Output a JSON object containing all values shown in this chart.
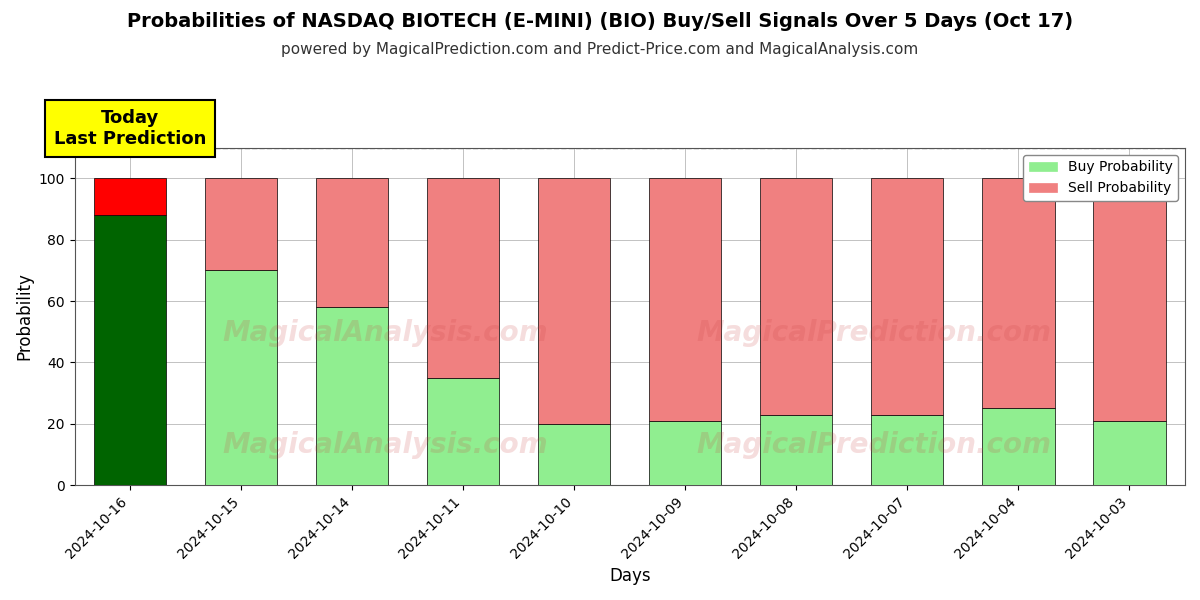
{
  "title": "Probabilities of NASDAQ BIOTECH (E-MINI) (BIO) Buy/Sell Signals Over 5 Days (Oct 17)",
  "subtitle": "powered by MagicalPrediction.com and Predict-Price.com and MagicalAnalysis.com",
  "xlabel": "Days",
  "ylabel": "Probability",
  "categories": [
    "2024-10-16",
    "2024-10-15",
    "2024-10-14",
    "2024-10-11",
    "2024-10-10",
    "2024-10-09",
    "2024-10-08",
    "2024-10-07",
    "2024-10-04",
    "2024-10-03"
  ],
  "buy_values": [
    88,
    70,
    58,
    35,
    20,
    21,
    23,
    23,
    25,
    21
  ],
  "sell_values": [
    12,
    30,
    42,
    65,
    80,
    79,
    77,
    77,
    75,
    79
  ],
  "buy_colors": [
    "#006400",
    "#90EE90",
    "#90EE90",
    "#90EE90",
    "#90EE90",
    "#90EE90",
    "#90EE90",
    "#90EE90",
    "#90EE90",
    "#90EE90"
  ],
  "sell_colors": [
    "#FF0000",
    "#F08080",
    "#F08080",
    "#F08080",
    "#F08080",
    "#F08080",
    "#F08080",
    "#F08080",
    "#F08080",
    "#F08080"
  ],
  "today_label": "Today\nLast Prediction",
  "today_bg": "#FFFF00",
  "legend_buy_color": "#90EE90",
  "legend_sell_color": "#F08080",
  "legend_buy_label": "Buy Probability",
  "legend_sell_label": "Sell Probability",
  "ylim": [
    0,
    110
  ],
  "dashed_line_y": 110,
  "bar_edge_color": "#000000",
  "bar_linewidth": 0.5,
  "background_color": "#ffffff",
  "grid_color": "#aaaaaa",
  "title_fontsize": 14,
  "subtitle_fontsize": 11
}
